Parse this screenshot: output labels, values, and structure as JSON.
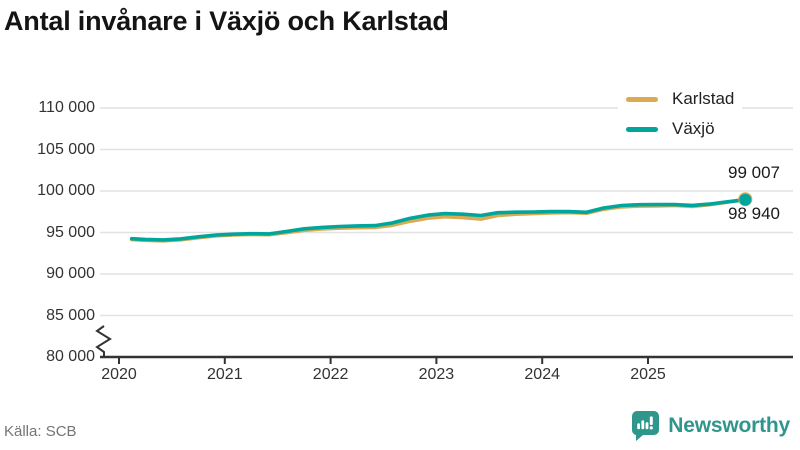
{
  "title": "Antal invånare i Växjö och Karlstad",
  "source": {
    "label": "Källa: SCB"
  },
  "branding": {
    "name": "Newsworthy",
    "icon": "newsworthy-speech-bubble-bar-chart-icon",
    "color": "#2f968c"
  },
  "colors": {
    "karlstad": "#dcaa51",
    "vaxjo": "#00a59b",
    "grid": "#e2e2e2",
    "axis": "#333333",
    "tick_text": "#333333",
    "title_text": "#141414",
    "muted_text": "#757575"
  },
  "chart_data": {
    "type": "line",
    "title": "Antal invånare i Växjö och Karlstad",
    "xlabel": "",
    "ylabel": "",
    "grid": "horizontal",
    "legend_position": "top-right",
    "axis_break_at_bottom": true,
    "ylim": [
      80000,
      110000
    ],
    "xlim": [
      2019.82,
      2026.1
    ],
    "y_ticks": [
      110000,
      105000,
      100000,
      95000,
      90000,
      85000,
      80000
    ],
    "y_tick_labels": [
      "110 000",
      "105 000",
      "100 000",
      "95 000",
      "90 000",
      "85 000",
      "80 000"
    ],
    "x_ticks": [
      2020,
      2021,
      2022,
      2023,
      2024,
      2025
    ],
    "x_tick_labels": [
      "2020",
      "2021",
      "2022",
      "2023",
      "2024",
      "2025"
    ],
    "series": [
      {
        "name": "Karlstad",
        "color": "#dcaa51",
        "final_value": 99007,
        "final_label": "99 007",
        "points": [
          [
            2020.12,
            94140
          ],
          [
            2020.25,
            94060
          ],
          [
            2020.42,
            94000
          ],
          [
            2020.58,
            94120
          ],
          [
            2020.75,
            94370
          ],
          [
            2020.92,
            94600
          ],
          [
            2021.08,
            94700
          ],
          [
            2021.25,
            94760
          ],
          [
            2021.42,
            94740
          ],
          [
            2021.58,
            94980
          ],
          [
            2021.75,
            95260
          ],
          [
            2021.92,
            95430
          ],
          [
            2022.08,
            95520
          ],
          [
            2022.25,
            95580
          ],
          [
            2022.42,
            95620
          ],
          [
            2022.58,
            95850
          ],
          [
            2022.75,
            96350
          ],
          [
            2022.92,
            96720
          ],
          [
            2023.08,
            96900
          ],
          [
            2023.25,
            96800
          ],
          [
            2023.42,
            96620
          ],
          [
            2023.58,
            97050
          ],
          [
            2023.75,
            97200
          ],
          [
            2023.92,
            97280
          ],
          [
            2024.08,
            97350
          ],
          [
            2024.25,
            97400
          ],
          [
            2024.42,
            97320
          ],
          [
            2024.58,
            97800
          ],
          [
            2024.75,
            98080
          ],
          [
            2024.92,
            98180
          ],
          [
            2025.08,
            98200
          ],
          [
            2025.25,
            98250
          ],
          [
            2025.42,
            98150
          ],
          [
            2025.58,
            98350
          ],
          [
            2025.75,
            98650
          ],
          [
            2025.92,
            99007
          ]
        ]
      },
      {
        "name": "Växjö",
        "color": "#00a59b",
        "final_value": 98940,
        "final_label": "98 940",
        "points": [
          [
            2020.12,
            94250
          ],
          [
            2020.25,
            94170
          ],
          [
            2020.42,
            94110
          ],
          [
            2020.58,
            94230
          ],
          [
            2020.75,
            94480
          ],
          [
            2020.92,
            94700
          ],
          [
            2021.08,
            94800
          ],
          [
            2021.25,
            94850
          ],
          [
            2021.42,
            94830
          ],
          [
            2021.58,
            95120
          ],
          [
            2021.75,
            95450
          ],
          [
            2021.92,
            95620
          ],
          [
            2022.08,
            95720
          ],
          [
            2022.25,
            95800
          ],
          [
            2022.42,
            95830
          ],
          [
            2022.58,
            96150
          ],
          [
            2022.75,
            96700
          ],
          [
            2022.92,
            97100
          ],
          [
            2023.08,
            97280
          ],
          [
            2023.25,
            97200
          ],
          [
            2023.42,
            97050
          ],
          [
            2023.58,
            97380
          ],
          [
            2023.75,
            97450
          ],
          [
            2023.92,
            97470
          ],
          [
            2024.08,
            97520
          ],
          [
            2024.25,
            97520
          ],
          [
            2024.42,
            97430
          ],
          [
            2024.58,
            97950
          ],
          [
            2024.75,
            98250
          ],
          [
            2024.92,
            98350
          ],
          [
            2025.08,
            98360
          ],
          [
            2025.25,
            98360
          ],
          [
            2025.42,
            98260
          ],
          [
            2025.58,
            98420
          ],
          [
            2025.75,
            98700
          ],
          [
            2025.92,
            98940
          ]
        ]
      }
    ],
    "end_labels": {
      "top": "99 007",
      "bottom": "98 940"
    }
  }
}
